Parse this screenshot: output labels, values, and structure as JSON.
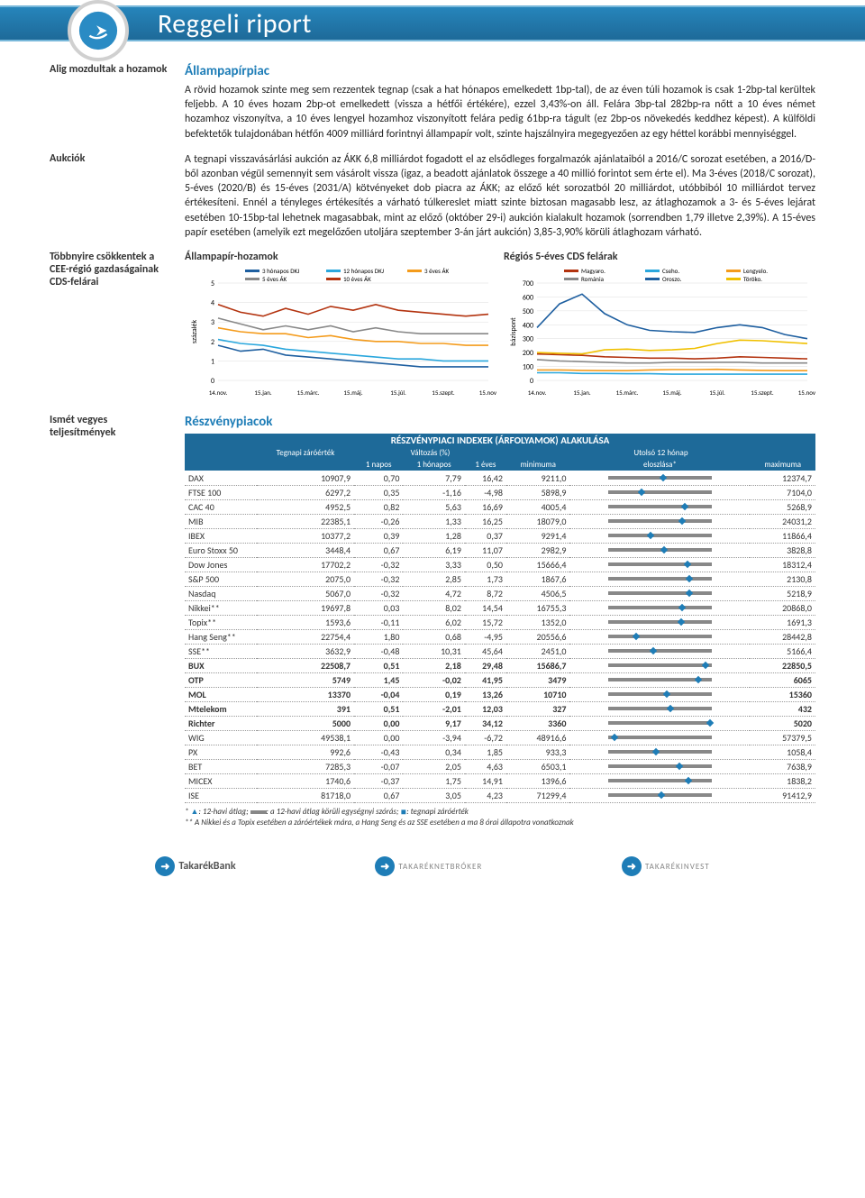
{
  "header": {
    "title": "Reggeli riport"
  },
  "sidebar": {
    "s1": "Alig mozdultak a hozamok",
    "s2": "Aukciók",
    "s3": "Többnyire csökkentek a CEE-régió gazdaságainak CDS-felárai",
    "s4": "Ismét vegyes teljesítmények"
  },
  "section1": {
    "heading": "Állampapírpiac",
    "para1": "A rövid hozamok szinte meg sem rezzentek tegnap (csak a hat hónapos emelkedett 1bp-tal), de az éven túli hozamok is csak 1-2bp-tal kerültek feljebb. A 10 éves hozam 2bp-ot emelkedett (vissza a hétfői értékére), ezzel 3,43%-on áll. Felára 3bp-tal 282bp-ra nőtt a 10 éves német hozamhoz viszonyítva, a 10 éves lengyel hozamhoz viszonyított felára pedig 61bp-ra tágult (ez 2bp-os növekedés keddhez képest). A külföldi befektetők tulajdonában hétfőn 4009 milliárd forintnyi állampapír volt, szinte hajszálnyira megegyezően az egy héttel korábbi mennyiséggel.",
    "para2": "A tegnapi visszavásárlási aukción az ÁKK 6,8 milliárdot fogadott el az elsődleges forgalmazók ajánlataiból a 2016/C sorozat esetében, a 2016/D-ből azonban végül semennyit sem vásárolt vissza (igaz, a beadott ajánlatok összege a 40 millió forintot sem érte el). Ma 3-éves (2018/C sorozat), 5-éves (2020/B) és 15-éves (2031/A) kötvényeket dob piacra az ÁKK; az előző két sorozatból 20 milliárdot, utóbbiból 10 milliárdot tervez értékesíteni. Ennél a tényleges értékesítés a várható túlkereslet miatt szinte biztosan magasabb lesz, az átlaghozamok a 3- és 5-éves lejárat esetében 10-15bp-tal lehetnek magasabbak, mint az előző (október 29-i) aukción kialakult hozamok (sorrendben 1,79 illetve 2,39%). A 15-éves papír esetében (amelyik ezt megelőzően utoljára szeptember 3-án járt aukción) 3,85-3,90% körüli átlaghozam várható."
  },
  "chart1": {
    "title": "Állampapír-hozamok",
    "type": "line",
    "ylabel": "százalék",
    "ylim": [
      0,
      5
    ],
    "yticks": [
      0,
      1,
      2,
      3,
      4,
      5
    ],
    "xticks": [
      "14.nov.",
      "15.jan.",
      "15.márc.",
      "15.máj.",
      "15.júl.",
      "15.szept.",
      "15.nov."
    ],
    "legend": [
      {
        "label": "3 hónapos DKJ",
        "color": "#1e5fa0"
      },
      {
        "label": "12 hónapos DKJ",
        "color": "#2aa7dd"
      },
      {
        "label": "3 éves ÁK",
        "color": "#f49b1b"
      },
      {
        "label": "5 éves ÁK",
        "color": "#888888"
      },
      {
        "label": "10 éves ÁK",
        "color": "#b3330f"
      }
    ],
    "series": {
      "dkj3": [
        1.8,
        1.5,
        1.6,
        1.3,
        1.2,
        1.1,
        1.0,
        0.9,
        0.8,
        0.7,
        0.7,
        0.7,
        0.7
      ],
      "dkj12": [
        2.1,
        1.9,
        1.8,
        1.6,
        1.5,
        1.4,
        1.3,
        1.2,
        1.1,
        1.1,
        1.0,
        1.0,
        1.0
      ],
      "ak3": [
        2.7,
        2.5,
        2.4,
        2.4,
        2.2,
        2.3,
        2.1,
        2.0,
        2.0,
        1.9,
        1.9,
        1.8,
        1.8
      ],
      "ak5": [
        3.2,
        2.9,
        2.6,
        2.8,
        2.6,
        2.8,
        2.5,
        2.7,
        2.5,
        2.4,
        2.4,
        2.4,
        2.4
      ],
      "ak10": [
        3.9,
        3.5,
        3.3,
        3.7,
        3.4,
        3.8,
        3.6,
        3.9,
        3.6,
        3.5,
        3.4,
        3.3,
        3.4
      ]
    },
    "line_width": 1.6,
    "grid_color": "#dddddd",
    "background_color": "#ffffff",
    "tick_fontsize": 8
  },
  "chart2": {
    "title": "Régiós 5-éves CDS felárak",
    "type": "line",
    "ylabel": "bázispont",
    "ylim": [
      0,
      700
    ],
    "yticks": [
      0,
      100,
      200,
      300,
      400,
      500,
      600,
      700
    ],
    "xticks": [
      "14.nov.",
      "15.jan.",
      "15.márc.",
      "15.máj.",
      "15.júl.",
      "15.szept.",
      "15.nov."
    ],
    "legend": [
      {
        "label": "Magyaro.",
        "color": "#b3330f"
      },
      {
        "label": "Cseho.",
        "color": "#2aa7dd"
      },
      {
        "label": "Lengyelo.",
        "color": "#f49b1b"
      },
      {
        "label": "Románia",
        "color": "#888888"
      },
      {
        "label": "Oroszo.",
        "color": "#1e5fa0"
      },
      {
        "label": "Töröko.",
        "color": "#f0c000"
      }
    ],
    "series": {
      "magyar": [
        190,
        185,
        180,
        170,
        165,
        160,
        160,
        155,
        160,
        170,
        165,
        160,
        155
      ],
      "cseh": [
        55,
        55,
        50,
        50,
        48,
        48,
        45,
        45,
        45,
        45,
        45,
        45,
        45
      ],
      "lengyel": [
        75,
        75,
        72,
        70,
        70,
        75,
        78,
        78,
        80,
        75,
        72,
        70,
        70
      ],
      "roman": [
        150,
        140,
        135,
        130,
        125,
        125,
        130,
        130,
        130,
        130,
        125,
        125,
        125
      ],
      "orosz": [
        380,
        550,
        620,
        480,
        400,
        360,
        350,
        345,
        380,
        400,
        380,
        330,
        300
      ],
      "torok": [
        200,
        195,
        190,
        220,
        225,
        215,
        220,
        230,
        265,
        290,
        285,
        275,
        265
      ]
    },
    "line_width": 1.6,
    "grid_color": "#dddddd",
    "background_color": "#ffffff",
    "tick_fontsize": 8
  },
  "section2": {
    "heading": "Részvénypiacok"
  },
  "table": {
    "header": "RÉSZVÉNYPIACI INDEXEK (ÁRFOLYAMOK) ALAKULÁSA",
    "h2": {
      "tegnapi": "Tegnapi záróérték",
      "valtozas": "Változás (%)",
      "utolso": "Utolsó 12 hónap"
    },
    "h3": {
      "c1": "",
      "c2": "",
      "c3": "1 napos",
      "c4": "1 hónapos",
      "c5": "1 éves",
      "c6": "minimuma",
      "c7": "eloszlása*",
      "c8": "maximuma"
    },
    "rows": [
      {
        "name": "DAX",
        "close": "10907,9",
        "d1": "0,70",
        "m1": "7,79",
        "y1": "16,42",
        "min": "9211,0",
        "max": "12374,7",
        "spark_l": 0.0,
        "spark_r": 1.0,
        "spark_m": 0.54,
        "bold": false
      },
      {
        "name": "FTSE 100",
        "close": "6297,2",
        "d1": "0,35",
        "m1": "-1,16",
        "y1": "-4,98",
        "min": "5898,9",
        "max": "7104,0",
        "spark_l": 0.0,
        "spark_r": 1.0,
        "spark_m": 0.33,
        "bold": false
      },
      {
        "name": "CAC 40",
        "close": "4952,5",
        "d1": "0,82",
        "m1": "5,63",
        "y1": "16,69",
        "min": "4005,4",
        "max": "5268,9",
        "spark_l": 0.0,
        "spark_r": 1.0,
        "spark_m": 0.75,
        "bold": false
      },
      {
        "name": "MIB",
        "close": "22385,1",
        "d1": "-0,26",
        "m1": "1,33",
        "y1": "16,25",
        "min": "18079,0",
        "max": "24031,2",
        "spark_l": 0.0,
        "spark_r": 1.0,
        "spark_m": 0.72,
        "bold": false
      },
      {
        "name": "IBEX",
        "close": "10377,2",
        "d1": "0,39",
        "m1": "1,28",
        "y1": "0,37",
        "min": "9291,4",
        "max": "11866,4",
        "spark_l": 0.0,
        "spark_r": 1.0,
        "spark_m": 0.42,
        "bold": false
      },
      {
        "name": "Euro Stoxx 50",
        "close": "3448,4",
        "d1": "0,67",
        "m1": "6,19",
        "y1": "11,07",
        "min": "2982,9",
        "max": "3828,8",
        "spark_l": 0.0,
        "spark_r": 1.0,
        "spark_m": 0.55,
        "bold": false
      },
      {
        "name": "Dow Jones",
        "close": "17702,2",
        "d1": "-0,32",
        "m1": "3,33",
        "y1": "0,50",
        "min": "15666,4",
        "max": "18312,4",
        "spark_l": 0.0,
        "spark_r": 1.0,
        "spark_m": 0.77,
        "bold": false
      },
      {
        "name": "S&P 500",
        "close": "2075,0",
        "d1": "-0,32",
        "m1": "2,85",
        "y1": "1,73",
        "min": "1867,6",
        "max": "2130,8",
        "spark_l": 0.0,
        "spark_r": 1.0,
        "spark_m": 0.79,
        "bold": false
      },
      {
        "name": "Nasdaq",
        "close": "5067,0",
        "d1": "-0,32",
        "m1": "4,72",
        "y1": "8,72",
        "min": "4506,5",
        "max": "5218,9",
        "spark_l": 0.0,
        "spark_r": 1.0,
        "spark_m": 0.79,
        "bold": false
      },
      {
        "name": "Nikkei**",
        "close": "19697,8",
        "d1": "0,03",
        "m1": "8,02",
        "y1": "14,54",
        "min": "16755,3",
        "max": "20868,0",
        "spark_l": 0.0,
        "spark_r": 1.0,
        "spark_m": 0.72,
        "bold": false
      },
      {
        "name": "Topix**",
        "close": "1593,6",
        "d1": "-0,11",
        "m1": "6,02",
        "y1": "15,72",
        "min": "1352,0",
        "max": "1691,3",
        "spark_l": 0.0,
        "spark_r": 1.0,
        "spark_m": 0.71,
        "bold": false
      },
      {
        "name": "Hang Seng**",
        "close": "22754,4",
        "d1": "1,80",
        "m1": "0,68",
        "y1": "-4,95",
        "min": "20556,6",
        "max": "28442,8",
        "spark_l": 0.0,
        "spark_r": 1.0,
        "spark_m": 0.28,
        "bold": false
      },
      {
        "name": "SSE**",
        "close": "3632,9",
        "d1": "-0,48",
        "m1": "10,31",
        "y1": "45,64",
        "min": "2451,0",
        "max": "5166,4",
        "spark_l": 0.0,
        "spark_r": 1.0,
        "spark_m": 0.44,
        "bold": false
      },
      {
        "name": "BUX",
        "close": "22508,7",
        "d1": "0,51",
        "m1": "2,18",
        "y1": "29,48",
        "min": "15686,7",
        "max": "22850,5",
        "spark_l": 0.0,
        "spark_r": 1.0,
        "spark_m": 0.95,
        "bold": true
      },
      {
        "name": "OTP",
        "close": "5749",
        "d1": "1,45",
        "m1": "-0,02",
        "y1": "41,95",
        "min": "3479",
        "max": "6065",
        "spark_l": 0.0,
        "spark_r": 1.0,
        "spark_m": 0.88,
        "bold": true
      },
      {
        "name": "MOL",
        "close": "13370",
        "d1": "-0,04",
        "m1": "0,19",
        "y1": "13,26",
        "min": "10710",
        "max": "15360",
        "spark_l": 0.0,
        "spark_r": 1.0,
        "spark_m": 0.57,
        "bold": true
      },
      {
        "name": "Mtelekom",
        "close": "391",
        "d1": "0,51",
        "m1": "-2,01",
        "y1": "12,03",
        "min": "327",
        "max": "432",
        "spark_l": 0.0,
        "spark_r": 1.0,
        "spark_m": 0.61,
        "bold": true
      },
      {
        "name": "Richter",
        "close": "5000",
        "d1": "0,00",
        "m1": "9,17",
        "y1": "34,12",
        "min": "3360",
        "max": "5020",
        "spark_l": 0.0,
        "spark_r": 1.0,
        "spark_m": 0.99,
        "bold": true
      },
      {
        "name": "WIG",
        "close": "49538,1",
        "d1": "0,00",
        "m1": "-3,94",
        "y1": "-6,72",
        "min": "48916,6",
        "max": "57379,5",
        "spark_l": 0.0,
        "spark_r": 1.0,
        "spark_m": 0.07,
        "bold": false
      },
      {
        "name": "PX",
        "close": "992,6",
        "d1": "-0,43",
        "m1": "0,34",
        "y1": "1,85",
        "min": "933,3",
        "max": "1058,4",
        "spark_l": 0.0,
        "spark_r": 1.0,
        "spark_m": 0.47,
        "bold": false
      },
      {
        "name": "BET",
        "close": "7285,3",
        "d1": "-0,07",
        "m1": "2,05",
        "y1": "4,63",
        "min": "6503,1",
        "max": "7638,9",
        "spark_l": 0.0,
        "spark_r": 1.0,
        "spark_m": 0.69,
        "bold": false
      },
      {
        "name": "MICEX",
        "close": "1740,6",
        "d1": "-0,37",
        "m1": "1,75",
        "y1": "14,91",
        "min": "1396,6",
        "max": "1838,2",
        "spark_l": 0.0,
        "spark_r": 1.0,
        "spark_m": 0.78,
        "bold": false
      },
      {
        "name": "ISE",
        "close": "81718,0",
        "d1": "0,67",
        "m1": "3,05",
        "y1": "4,23",
        "min": "71299,4",
        "max": "91412,9",
        "spark_l": 0.0,
        "spark_r": 1.0,
        "spark_m": 0.52,
        "bold": false
      }
    ],
    "spark_color_bar": "#888888",
    "spark_color_marker": "#1e7db7"
  },
  "footnote": {
    "l1a": "* ",
    "l1b": ": 12-havi átlag;   ",
    "l1c": ": a 12-havi átlag körüli egységnyi szórás;   ",
    "l1d": ": tegnapi záróérték",
    "l2": "** A Nikkei és a Topix esetében a záróértékek mára, a Hang Seng és az SSE esetében a ma 8 órai állapotra vonatkoznak"
  },
  "footer": {
    "b1": "TakarékBank",
    "b2": "TAKARÉKNETBRÓKER",
    "b3": "TAKARÉKINVEST"
  }
}
